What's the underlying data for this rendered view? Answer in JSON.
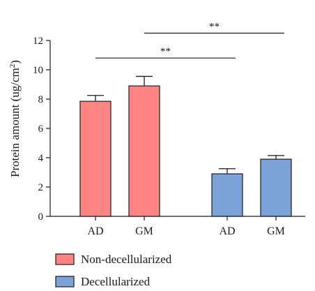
{
  "chart_data": {
    "type": "bar",
    "ylabel": "Protein amount (ug/cm",
    "ylabel_superscript": "2",
    "ylabel_close": ")",
    "ylim": [
      0,
      12
    ],
    "yticks": [
      0,
      2,
      4,
      6,
      8,
      10,
      12
    ],
    "groups": [
      {
        "name": "Non-decellularized",
        "color": "#ff8585"
      },
      {
        "name": "Decellularized",
        "color": "#7ba3d8"
      }
    ],
    "bars": [
      {
        "category": "AD",
        "group": 0,
        "value": 7.85,
        "error": 0.4
      },
      {
        "category": "GM",
        "group": 0,
        "value": 8.9,
        "error": 0.65
      },
      {
        "category": "AD",
        "group": 1,
        "value": 2.9,
        "error": 0.35
      },
      {
        "category": "GM",
        "group": 1,
        "value": 3.9,
        "error": 0.25
      }
    ],
    "significance": [
      {
        "label": "**",
        "from": 0,
        "to": 2,
        "y": 10.8
      },
      {
        "label": "**",
        "from": 1,
        "to": 3,
        "y": 12.5
      }
    ],
    "grid": false,
    "legend_position": "bottom-left"
  }
}
